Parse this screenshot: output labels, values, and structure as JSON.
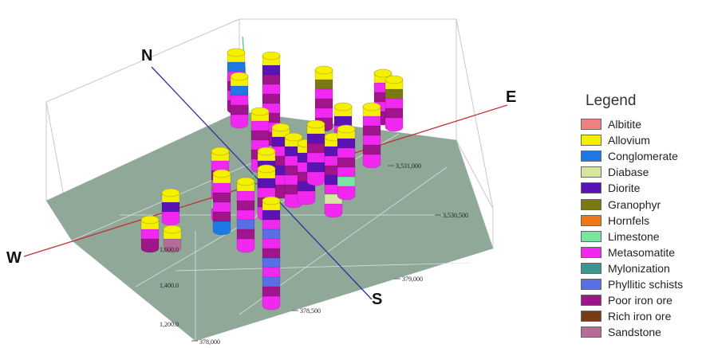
{
  "axes": {
    "north": "N",
    "east": "E",
    "west": "W",
    "south": "S"
  },
  "ticks": [
    {
      "id": "tick-3531000",
      "text": "3,531,000"
    },
    {
      "id": "tick-3530500",
      "text": "3,530,500"
    },
    {
      "id": "tick-379000",
      "text": "379,000"
    },
    {
      "id": "tick-378500",
      "text": "378,500"
    },
    {
      "id": "tick-378000",
      "text": "378,000"
    },
    {
      "id": "tick-600",
      "text": "1,600.0"
    },
    {
      "id": "tick-400",
      "text": "1,400.0"
    },
    {
      "id": "tick-200",
      "text": "1,200.0"
    }
  ],
  "legend": {
    "title": "Legend",
    "items": [
      {
        "label": "Albitite",
        "color": "#f08080"
      },
      {
        "label": "Allovium",
        "color": "#f5f000"
      },
      {
        "label": "Conglomerate",
        "color": "#1e78e6"
      },
      {
        "label": "Diabase",
        "color": "#d6e8a0"
      },
      {
        "label": "Diorite",
        "color": "#5a14b4"
      },
      {
        "label": "Granophyr",
        "color": "#7a7a10"
      },
      {
        "label": "Hornfels",
        "color": "#f07814"
      },
      {
        "label": "Limestone",
        "color": "#78e6a0"
      },
      {
        "label": "Metasomatite",
        "color": "#f028f0"
      },
      {
        "label": "Mylonization",
        "color": "#3c9690"
      },
      {
        "label": "Phyllitic schists",
        "color": "#5a6ee6"
      },
      {
        "label": "Poor iron ore",
        "color": "#a0148c"
      },
      {
        "label": "Rich iron ore",
        "color": "#783c14"
      },
      {
        "label": "Sandstone",
        "color": "#b46e96"
      }
    ]
  },
  "colors": {
    "ground": "#8fa898",
    "east_west_axis": "#c03030",
    "north_south_axis": "#3030a0"
  }
}
